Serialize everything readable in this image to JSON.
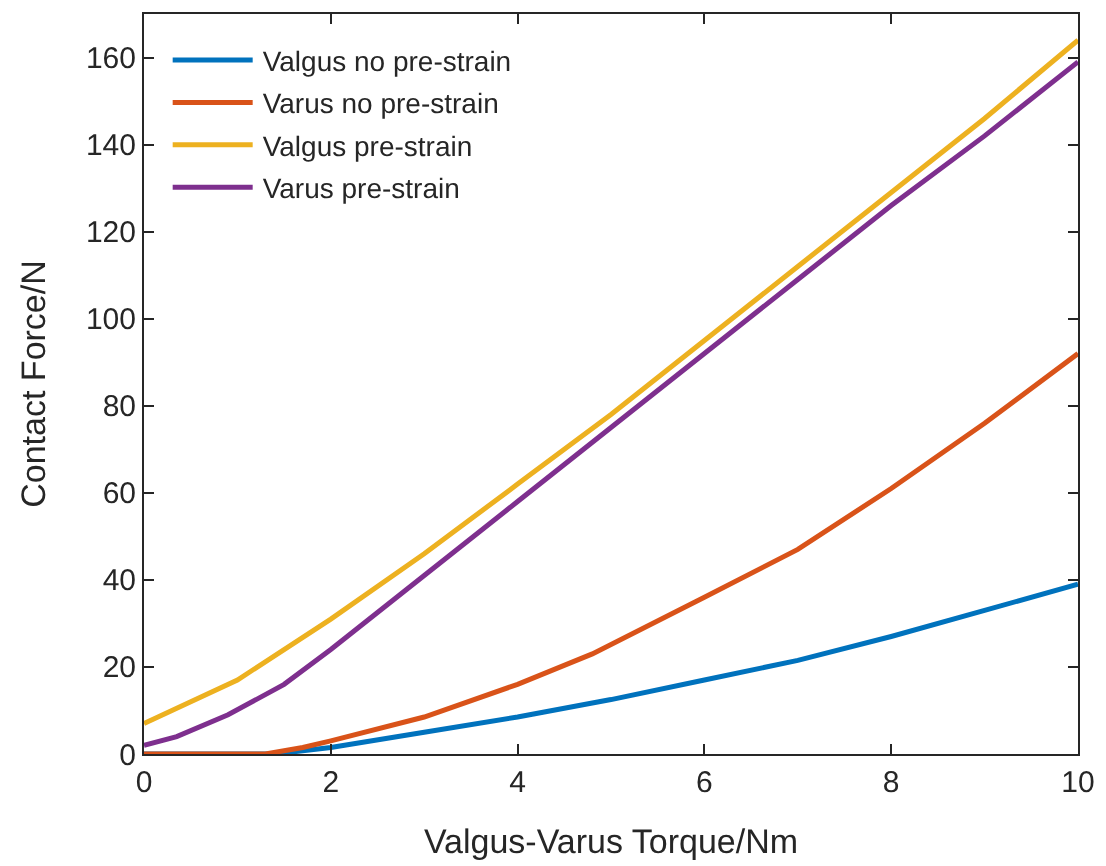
{
  "chart_data": {
    "type": "line",
    "xlabel": "Valgus-Varus Torque/Nm",
    "ylabel": "Contact Force/N",
    "xlim": [
      0,
      10
    ],
    "xticks": [
      0,
      2,
      4,
      6,
      8,
      10
    ],
    "ylim": [
      0,
      170
    ],
    "yticks": [
      0,
      20,
      40,
      60,
      80,
      100,
      120,
      140,
      160
    ],
    "legend": "top left",
    "marker": "none",
    "line_style": "solid",
    "series": [
      {
        "name": "Valgus no pre-strain",
        "color": "#0072bd",
        "x": [
          0,
          1.4,
          2,
          3,
          4,
          5,
          6,
          7,
          8,
          9,
          10
        ],
        "values": [
          0,
          0,
          1.5,
          5,
          8.5,
          12.5,
          17,
          21.5,
          27,
          33,
          39
        ]
      },
      {
        "name": "Varus no pre-strain",
        "color": "#d95319",
        "x": [
          0,
          1.3,
          1.7,
          2,
          3,
          4,
          4.8,
          6,
          7,
          8,
          9,
          10
        ],
        "values": [
          0,
          0,
          1.5,
          3,
          8.5,
          16,
          23,
          36,
          47,
          61,
          76,
          92
        ]
      },
      {
        "name": "Valgus pre-strain",
        "color": "#edb120",
        "x": [
          0,
          1,
          2,
          3,
          4,
          5,
          6,
          7,
          8,
          9,
          10
        ],
        "values": [
          7,
          17,
          31,
          46,
          62,
          78,
          95,
          112,
          129,
          146,
          164
        ]
      },
      {
        "name": "Varus pre-strain",
        "color": "#7e2f8e",
        "x": [
          0,
          0.35,
          0.9,
          1.5,
          2,
          3,
          4,
          5,
          6,
          7,
          8,
          9,
          10
        ],
        "values": [
          2,
          4,
          9,
          16,
          24,
          41,
          58,
          75,
          92,
          109,
          126,
          142,
          159
        ]
      }
    ]
  }
}
